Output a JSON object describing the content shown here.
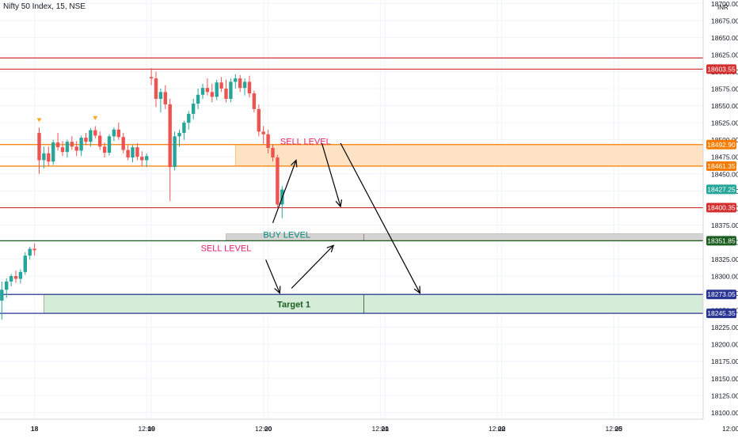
{
  "header": {
    "symbol": "Nifty 50 Index, 15, NSE",
    "currency": "INR"
  },
  "colors": {
    "up": "#26a69a",
    "down": "#ef5350",
    "red_line": "#d32f2f",
    "orange": "#f57c00",
    "orange_fill": "#fde3c3",
    "green_line": "#1b5e20",
    "navy": "#283593",
    "green_fill": "#d5ecd8",
    "grey_fill": "#d6d3d3",
    "text_pink": "#e91e63",
    "text_teal": "#00897b",
    "grid": "#f0f3fa",
    "axis_text": "#131722"
  },
  "chart_data": {
    "type": "candlestick",
    "y_axis": {
      "range": [
        18090,
        18705
      ],
      "ticks": [
        "18100.00",
        "18125.00",
        "18150.00",
        "18175.00",
        "18200.00",
        "18225.00",
        "18250.00",
        "18275.00",
        "18300.00",
        "18325.00",
        "18350.00",
        "18375.00",
        "18400.00",
        "18425.00",
        "18450.00",
        "18475.00",
        "18500.00",
        "18525.00",
        "18550.00",
        "18575.00",
        "18600.00",
        "18625.00",
        "18650.00",
        "18675.00",
        "18700.00"
      ]
    },
    "x_axis": {
      "ticks": [
        {
          "label": "18",
          "bar": 7,
          "bold": true
        },
        {
          "label": "12:00",
          "bar": 31,
          "bold": false
        },
        {
          "label": "19",
          "bar": 32,
          "bold": true
        },
        {
          "label": "12:00",
          "bar": 56,
          "bold": false
        },
        {
          "label": "20",
          "bar": 57,
          "bold": true
        },
        {
          "label": "12:00",
          "bar": 81,
          "bold": false
        },
        {
          "label": "21",
          "bar": 82,
          "bold": true
        },
        {
          "label": "12:00",
          "bar": 106,
          "bold": false
        },
        {
          "label": "22",
          "bar": 107,
          "bold": true
        },
        {
          "label": "12:00",
          "bar": 131,
          "bold": false
        },
        {
          "label": "25",
          "bar": 132,
          "bold": true
        },
        {
          "label": "12:00",
          "bar": 156,
          "bold": false
        }
      ]
    },
    "price_lines": [
      {
        "price": 18620,
        "color": "red",
        "label": ""
      },
      {
        "price": 18603.55,
        "color": "red",
        "label": "18603.55"
      },
      {
        "price": 18492.9,
        "color": "orange",
        "label": "18492.90"
      },
      {
        "price": 18461.35,
        "color": "orange",
        "label": "18461.35"
      },
      {
        "price": 18427.25,
        "color": "up",
        "label": "18427.25",
        "line": false
      },
      {
        "price": 18400.35,
        "color": "red",
        "label": "18400.35"
      },
      {
        "price": 18351.85,
        "color": "green",
        "label": "18351.85"
      },
      {
        "price": 18273.05,
        "color": "navy",
        "label": "18273.05"
      },
      {
        "price": 18245.35,
        "color": "navy",
        "label": "18245.35"
      }
    ],
    "zones": [
      {
        "name": "sell-zone",
        "bar_start": 50,
        "bar_end": 160,
        "top": 18492.9,
        "bottom": 18461.35,
        "fill": "orange"
      },
      {
        "name": "buy-zone",
        "bar_start": 48,
        "bar_end": 160,
        "top": 18362,
        "bottom": 18352,
        "fill": "grey",
        "divider_bar": 77.5
      },
      {
        "name": "target-zone",
        "bar_start": 9,
        "bar_end": 160,
        "top": 18273.05,
        "bottom": 18245.35,
        "fill": "green",
        "divider_bar": 77.5
      }
    ],
    "annotations": [
      {
        "text": "SELL LEVEL",
        "bar": 65,
        "price": 18498,
        "color": "pink"
      },
      {
        "text": "BUY LEVEL",
        "bar": 61,
        "price": 18361,
        "color": "teal"
      },
      {
        "text": "SELL LEVEL",
        "bar": 48,
        "price": 18341,
        "color": "pink"
      },
      {
        "text": "Target 1",
        "bar": 62.5,
        "price": 18259,
        "color": "green_text"
      }
    ],
    "arrows": [
      {
        "from": [
          58.0,
          18378
        ],
        "to": [
          63.0,
          18470
        ]
      },
      {
        "from": [
          68.5,
          18495
        ],
        "to": [
          72.5,
          18402
        ]
      },
      {
        "from": [
          56.5,
          18324
        ],
        "to": [
          59.5,
          18275
        ]
      },
      {
        "from": [
          62.0,
          18282
        ],
        "to": [
          71.0,
          18345
        ]
      },
      {
        "from": [
          72.5,
          18495
        ],
        "to": [
          89.5,
          18275
        ]
      }
    ],
    "candles": [
      [
        18264,
        18292,
        18236,
        18280
      ],
      [
        18280,
        18297,
        18268,
        18292
      ],
      [
        18292,
        18303,
        18285,
        18300
      ],
      [
        18300,
        18308,
        18290,
        18296
      ],
      [
        18296,
        18310,
        18289,
        18306
      ],
      [
        18306,
        18335,
        18302,
        18330
      ],
      [
        18330,
        18343,
        18324,
        18340
      ],
      [
        18340,
        18348,
        18330,
        18338
      ],
      [
        18510,
        18518,
        18450,
        18470
      ],
      [
        18470,
        18490,
        18458,
        18480
      ],
      [
        18480,
        18490,
        18462,
        18468
      ],
      [
        18468,
        18500,
        18463,
        18496
      ],
      [
        18496,
        18510,
        18484,
        18489
      ],
      [
        18489,
        18498,
        18476,
        18482
      ],
      [
        18482,
        18500,
        18474,
        18497
      ],
      [
        18497,
        18505,
        18485,
        18490
      ],
      [
        18490,
        18498,
        18476,
        18484
      ],
      [
        18484,
        18506,
        18476,
        18503
      ],
      [
        18503,
        18510,
        18492,
        18497
      ],
      [
        18497,
        18517,
        18490,
        18514
      ],
      [
        18514,
        18520,
        18502,
        18506
      ],
      [
        18506,
        18512,
        18485,
        18490
      ],
      [
        18490,
        18496,
        18474,
        18481
      ],
      [
        18481,
        18508,
        18477,
        18505
      ],
      [
        18505,
        18518,
        18498,
        18515
      ],
      [
        18515,
        18525,
        18500,
        18504
      ],
      [
        18504,
        18510,
        18480,
        18485
      ],
      [
        18485,
        18492,
        18470,
        18474
      ],
      [
        18474,
        18492,
        18467,
        18489
      ],
      [
        18489,
        18495,
        18470,
        18475
      ],
      [
        18475,
        18483,
        18462,
        18470
      ],
      [
        18470,
        18480,
        18460,
        18476
      ],
      [
        18592,
        18605,
        18580,
        18590
      ],
      [
        18590,
        18600,
        18548,
        18560
      ],
      [
        18560,
        18575,
        18540,
        18570
      ],
      [
        18570,
        18580,
        18545,
        18552
      ],
      [
        18552,
        18560,
        18410,
        18460
      ],
      [
        18460,
        18512,
        18455,
        18505
      ],
      [
        18505,
        18515,
        18490,
        18510
      ],
      [
        18510,
        18528,
        18500,
        18525
      ],
      [
        18525,
        18542,
        18515,
        18538
      ],
      [
        18538,
        18560,
        18530,
        18553
      ],
      [
        18553,
        18575,
        18545,
        18566
      ],
      [
        18566,
        18582,
        18560,
        18576
      ],
      [
        18576,
        18590,
        18565,
        18570
      ],
      [
        18570,
        18582,
        18555,
        18563
      ],
      [
        18563,
        18588,
        18558,
        18584
      ],
      [
        18584,
        18592,
        18570,
        18575
      ],
      [
        18575,
        18588,
        18555,
        18560
      ],
      [
        18560,
        18590,
        18555,
        18585
      ],
      [
        18585,
        18596,
        18575,
        18590
      ],
      [
        18590,
        18595,
        18570,
        18576
      ],
      [
        18576,
        18590,
        18565,
        18585
      ],
      [
        18585,
        18594,
        18562,
        18568
      ],
      [
        18568,
        18572,
        18540,
        18545
      ],
      [
        18545,
        18552,
        18505,
        18512
      ],
      [
        18512,
        18520,
        18494,
        18508
      ],
      [
        18508,
        18515,
        18480,
        18488
      ],
      [
        18488,
        18493,
        18468,
        18474
      ],
      [
        18474,
        18478,
        18400,
        18405
      ],
      [
        18405,
        18432,
        18385,
        18427
      ]
    ]
  }
}
